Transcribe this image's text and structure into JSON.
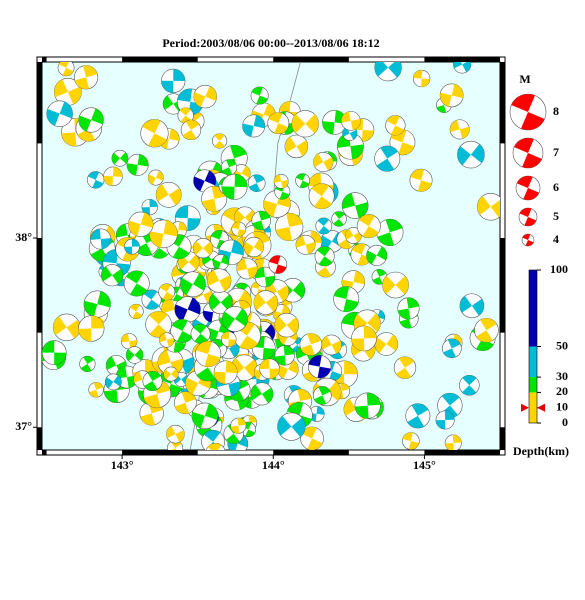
{
  "chart_data": {
    "type": "focal-map",
    "title": "Period:2003/08/06 00:00--2013/08/06 18:12",
    "xlim": [
      142.47,
      145.5
    ],
    "ylim": [
      36.88,
      38.93
    ],
    "xticks": [
      {
        "value": 143,
        "label": "143°"
      },
      {
        "value": 144,
        "label": "144°"
      },
      {
        "value": 145,
        "label": "145°"
      }
    ],
    "yticks": [
      {
        "value": 37,
        "label": "37°"
      },
      {
        "value": 38,
        "label": "38°"
      }
    ],
    "main_event": {
      "lon": 144.03,
      "lat": 37.86,
      "color": "#ff0000"
    },
    "magnitude_legend": {
      "title": "M",
      "values": [
        8,
        7,
        6,
        5,
        4
      ],
      "color": "#ff0000"
    },
    "depth_scale": {
      "title": "Depth(km)",
      "lim": [
        0,
        100
      ],
      "ticks": [
        0,
        10,
        20,
        30,
        50,
        100
      ],
      "bands": [
        {
          "from": 0,
          "to": 20,
          "color": "#ffd400"
        },
        {
          "from": 20,
          "to": 30,
          "color": "#00e600"
        },
        {
          "from": 30,
          "to": 50,
          "color": "#00bcd4"
        },
        {
          "from": 50,
          "to": 100,
          "color": "#0000b0"
        }
      ]
    }
  }
}
